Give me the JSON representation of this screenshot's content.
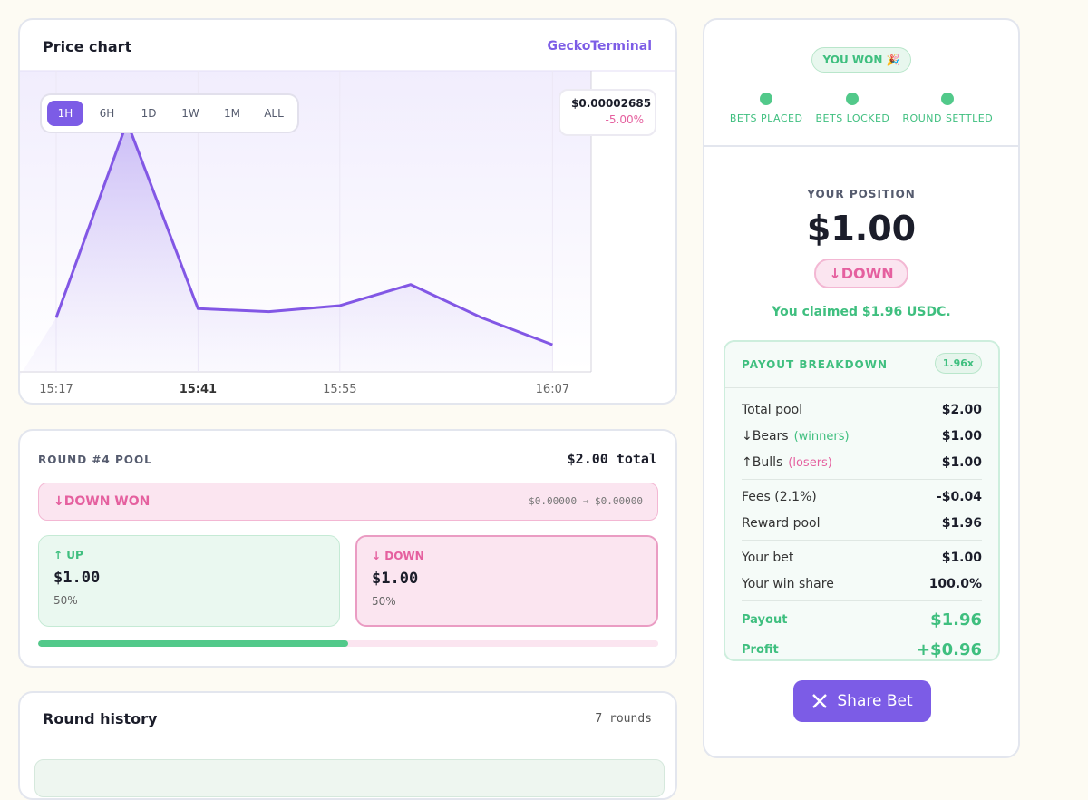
{
  "price_chart": {
    "title": "Price chart",
    "source": "GeckoTerminal",
    "ranges": [
      "1H",
      "6H",
      "1D",
      "1W",
      "1M",
      "ALL"
    ],
    "selected_range": "1H",
    "price": "$0.00002685",
    "change": "-5.00%",
    "chart": {
      "type": "line",
      "categories": [
        "15:17",
        null,
        "15:41",
        null,
        "15:55",
        null,
        null,
        "16:07"
      ],
      "values": [
        18,
        83,
        21,
        20,
        22,
        29,
        18,
        9
      ],
      "ylim": [
        0,
        100
      ],
      "color": "#8257e5"
    }
  },
  "pool": {
    "title": "ROUND #4 POOL",
    "total": "$2.00 total",
    "result": "↓DOWN WON",
    "price_move": "$0.00000 → $0.00000",
    "up": {
      "label": "↑ UP",
      "amount": "$1.00",
      "share": 50,
      "share_label": "50%"
    },
    "down": {
      "label": "↓ DOWN",
      "amount": "$1.00",
      "share": 50,
      "share_label": "50%"
    }
  },
  "history": {
    "title": "Round history",
    "count": "7 rounds"
  },
  "result_panel": {
    "badge": "YOU WON 🎉",
    "steps": [
      "BETS PLACED",
      "BETS LOCKED",
      "ROUND SETTLED"
    ],
    "position_label": "YOUR POSITION",
    "position_amount": "$1.00",
    "position_side": "↓DOWN",
    "claimed": "You claimed $1.96 USDC.",
    "breakdown": {
      "title": "PAYOUT BREAKDOWN",
      "multiplier": "1.96x",
      "groups": [
        [
          {
            "label": "Total pool",
            "value": "$2.00"
          },
          {
            "label": "↓Bears",
            "note": "(winners)",
            "value": "$1.00"
          },
          {
            "label": "↑Bulls",
            "note": "(losers)",
            "value": "$1.00"
          }
        ],
        [
          {
            "label": "Fees (2.1%)",
            "value": "-$0.04"
          },
          {
            "label": "Reward pool",
            "value": "$1.96"
          }
        ],
        [
          {
            "label": "Your bet",
            "value": "$1.00"
          },
          {
            "label": "Your win share",
            "value": "100.0%"
          }
        ],
        [
          {
            "label": "Payout",
            "value": "$1.96"
          },
          {
            "label": "Profit",
            "value": "+$0.96"
          }
        ]
      ]
    },
    "share_button": "Share Bet"
  }
}
